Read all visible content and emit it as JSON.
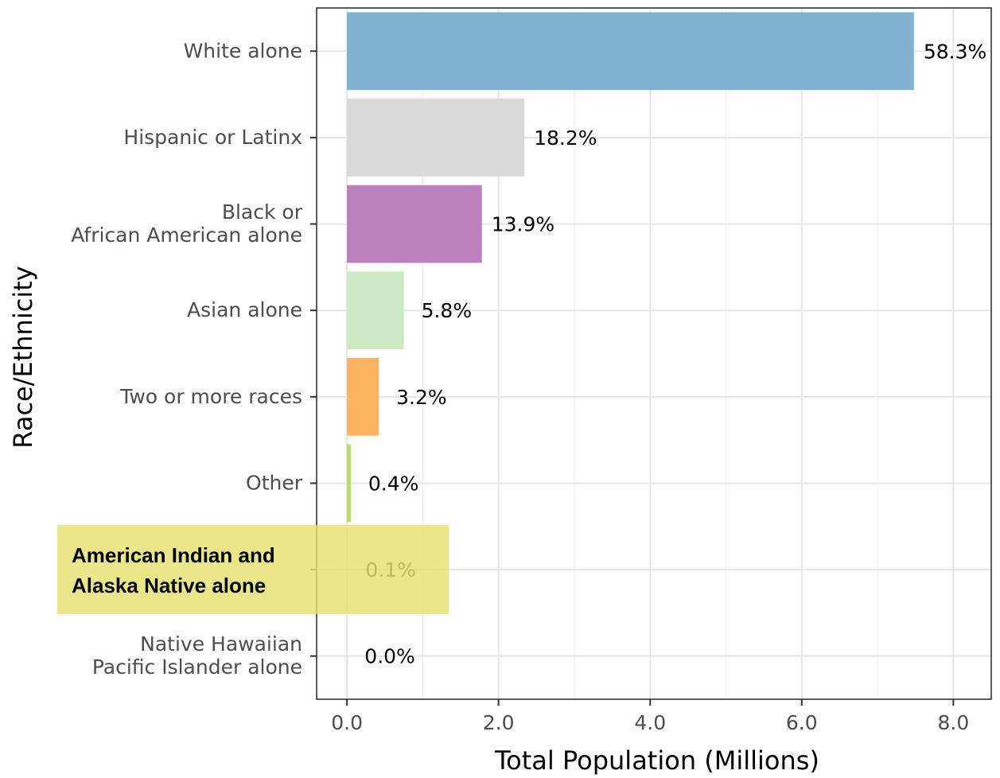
{
  "chart_data": {
    "type": "bar",
    "orientation": "horizontal",
    "categories": [
      [
        "White alone"
      ],
      [
        "Hispanic or Latinx"
      ],
      [
        "Black or",
        "African American alone"
      ],
      [
        "Asian alone"
      ],
      [
        "Two or more races"
      ],
      [
        "Other"
      ],
      [
        "American Indian and",
        "Alaska Native alone"
      ],
      [
        "Native Hawaiian",
        "Pacific Islander alone"
      ]
    ],
    "values": [
      7.48,
      2.34,
      1.78,
      0.75,
      0.42,
      0.05,
      0.013,
      0.002
    ],
    "data_labels": [
      "58.3%",
      "18.2%",
      "13.9%",
      "5.8%",
      "3.2%",
      "0.4%",
      "0.1%",
      "0.0%"
    ],
    "colors": [
      "#80b1d3",
      "#d9d9d9",
      "#bc80bd",
      "#ccebc5",
      "#fdb462",
      "#b3de69",
      "#fccde5",
      "#8dd3c7"
    ],
    "xlabel": "Total Population (Millions)",
    "ylabel": "Race/Ethnicity",
    "xlim": [
      -0.4,
      8.5
    ],
    "xticks": [
      0,
      2,
      4,
      6,
      8
    ],
    "xtick_labels": [
      "0.0",
      "2.0",
      "4.0",
      "6.0",
      "8.0"
    ],
    "grid": true,
    "highlight": {
      "category_index": 6,
      "color": "#e6e070"
    }
  }
}
